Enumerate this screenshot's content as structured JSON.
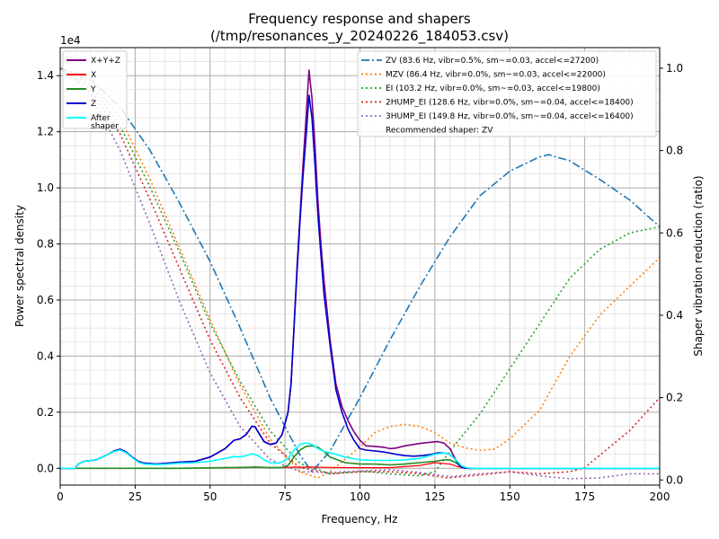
{
  "chart_data": {
    "type": "line",
    "title": "Frequency response and shapers",
    "subtitle": "(/tmp/resonances_y_20240226_184053.csv)",
    "xlabel": "Frequency, Hz",
    "ylabel": "Power spectral density",
    "y2label": "Shaper vibration reduction (ratio)",
    "y_offset_label": "1e4",
    "xlim": [
      0,
      200
    ],
    "ylim": [
      -0.06,
      1.5
    ],
    "y2lim": [
      -0.0125,
      1.05
    ],
    "x_ticks": [
      0,
      25,
      50,
      75,
      100,
      125,
      150,
      175,
      200
    ],
    "y_ticks": [
      0.0,
      0.2,
      0.4,
      0.6,
      0.8,
      1.0,
      1.2,
      1.4
    ],
    "y2_ticks": [
      0.0,
      0.2,
      0.4,
      0.6,
      0.8,
      1.0
    ],
    "grid": "major and minor",
    "legend_left": {
      "placement": "top-left",
      "entries": [
        {
          "label": "X+Y+Z",
          "color": "#800080"
        },
        {
          "label": "X",
          "color": "#ff0000"
        },
        {
          "label": "Y",
          "color": "#228b22"
        },
        {
          "label": "Z",
          "color": "#0000cd"
        },
        {
          "label": "After\nshaper",
          "color": "#00ffff"
        }
      ]
    },
    "legend_right": {
      "placement": "top-right",
      "entries": [
        {
          "label": "ZV (83.6 Hz, vibr=0.5%, sm~=0.03, accel<=27200)",
          "color": "#1f77b4",
          "style": "dashdot"
        },
        {
          "label": "MZV (86.4 Hz, vibr=0.0%, sm~=0.03, accel<=22000)",
          "color": "#ff7f0e",
          "style": "dotted"
        },
        {
          "label": "EI (103.2 Hz, vibr=0.0%, sm~=0.03, accel<=19800)",
          "color": "#2ca02c",
          "style": "dotted"
        },
        {
          "label": "2HUMP_EI (128.6 Hz, vibr=0.0%, sm~=0.04, accel<=18400)",
          "color": "#d62728",
          "style": "dotted"
        },
        {
          "label": "3HUMP_EI (149.8 Hz, vibr=0.0%, sm~=0.04, accel<=16400)",
          "color": "#9467bd",
          "style": "dotted"
        }
      ],
      "note": "Recommended shaper: ZV"
    },
    "psd_series": [
      {
        "name": "X+Y+Z",
        "color": "#800080",
        "width": 1.6,
        "x": [
          0,
          5,
          6,
          8,
          12,
          16,
          18,
          20,
          22,
          24,
          26,
          28,
          32,
          36,
          40,
          45,
          50,
          55,
          58,
          60,
          62,
          64,
          65,
          66,
          68,
          70,
          72,
          74,
          76,
          77,
          78,
          79,
          80,
          81,
          82,
          83,
          84,
          85,
          86,
          87,
          88,
          90,
          92,
          94,
          96,
          98,
          100,
          102,
          105,
          108,
          110,
          112,
          115,
          118,
          121,
          124,
          126,
          128,
          130,
          132,
          133,
          134,
          136,
          140,
          150,
          160,
          170,
          180,
          190,
          200
        ],
        "y": [
          0,
          0,
          0.015,
          0.025,
          0.03,
          0.05,
          0.062,
          0.068,
          0.058,
          0.04,
          0.025,
          0.018,
          0.015,
          0.018,
          0.022,
          0.025,
          0.04,
          0.07,
          0.1,
          0.105,
          0.12,
          0.15,
          0.148,
          0.13,
          0.095,
          0.085,
          0.09,
          0.12,
          0.2,
          0.3,
          0.5,
          0.72,
          0.9,
          1.08,
          1.25,
          1.42,
          1.32,
          1.15,
          0.95,
          0.8,
          0.67,
          0.46,
          0.3,
          0.22,
          0.17,
          0.13,
          0.1,
          0.08,
          0.078,
          0.075,
          0.07,
          0.072,
          0.08,
          0.085,
          0.09,
          0.093,
          0.095,
          0.09,
          0.07,
          0.03,
          0.012,
          0.003,
          0,
          0,
          0,
          0,
          0,
          0,
          0,
          0
        ]
      },
      {
        "name": "X",
        "color": "#ff0000",
        "width": 1.2,
        "x": [
          0,
          20,
          40,
          60,
          65,
          70,
          75,
          80,
          85,
          90,
          100,
          110,
          120,
          125,
          130,
          133,
          135,
          140,
          200
        ],
        "y": [
          0,
          0,
          0,
          0.002,
          0.005,
          0.002,
          0.003,
          0.004,
          0.004,
          0.003,
          0.002,
          0.002,
          0.01,
          0.02,
          0.015,
          0.005,
          0,
          0,
          0
        ]
      },
      {
        "name": "Y",
        "color": "#228b22",
        "width": 1.6,
        "x": [
          0,
          20,
          40,
          60,
          66,
          70,
          74,
          76,
          78,
          80,
          82,
          84,
          86,
          88,
          90,
          95,
          100,
          105,
          110,
          115,
          120,
          125,
          128,
          130,
          132,
          134,
          136,
          140,
          200
        ],
        "y": [
          0,
          0,
          0,
          0.003,
          0.004,
          0.002,
          0.003,
          0.01,
          0.04,
          0.065,
          0.078,
          0.08,
          0.075,
          0.06,
          0.04,
          0.02,
          0.015,
          0.015,
          0.012,
          0.015,
          0.02,
          0.025,
          0.03,
          0.03,
          0.02,
          0.005,
          0,
          0,
          0
        ]
      },
      {
        "name": "Z",
        "color": "#0000cd",
        "width": 1.6,
        "x": [
          0,
          5,
          6,
          8,
          12,
          16,
          18,
          20,
          22,
          24,
          26,
          28,
          32,
          36,
          40,
          45,
          50,
          55,
          58,
          60,
          62,
          64,
          65,
          66,
          68,
          70,
          72,
          74,
          76,
          77,
          78,
          79,
          80,
          81,
          82,
          83,
          84,
          85,
          86,
          87,
          88,
          90,
          92,
          94,
          96,
          98,
          100,
          102,
          105,
          108,
          110,
          112,
          115,
          118,
          121,
          124,
          126,
          128,
          130,
          132,
          133,
          134,
          136,
          140,
          150,
          160,
          170,
          180,
          190,
          200
        ],
        "y": [
          0,
          0,
          0.015,
          0.025,
          0.03,
          0.05,
          0.062,
          0.068,
          0.058,
          0.04,
          0.025,
          0.018,
          0.015,
          0.018,
          0.022,
          0.025,
          0.04,
          0.07,
          0.1,
          0.105,
          0.12,
          0.15,
          0.148,
          0.13,
          0.095,
          0.085,
          0.09,
          0.12,
          0.2,
          0.3,
          0.5,
          0.7,
          0.88,
          1.04,
          1.18,
          1.33,
          1.25,
          1.08,
          0.9,
          0.76,
          0.62,
          0.44,
          0.28,
          0.2,
          0.14,
          0.1,
          0.07,
          0.065,
          0.062,
          0.058,
          0.054,
          0.05,
          0.045,
          0.043,
          0.045,
          0.05,
          0.055,
          0.055,
          0.05,
          0.03,
          0.012,
          0.003,
          0,
          0,
          0,
          0,
          0,
          0,
          0,
          0
        ]
      },
      {
        "name": "After shaper",
        "color": "#00ffff",
        "width": 1.6,
        "x": [
          0,
          5,
          6,
          8,
          12,
          16,
          18,
          20,
          22,
          24,
          26,
          28,
          32,
          36,
          40,
          45,
          50,
          55,
          58,
          60,
          62,
          64,
          66,
          68,
          70,
          72,
          74,
          76,
          78,
          80,
          82,
          84,
          86,
          88,
          90,
          92,
          95,
          100,
          105,
          110,
          115,
          120,
          125,
          128,
          130,
          132,
          134,
          136,
          140,
          200
        ],
        "y": [
          0,
          0,
          0.015,
          0.025,
          0.03,
          0.05,
          0.06,
          0.065,
          0.055,
          0.038,
          0.022,
          0.015,
          0.013,
          0.015,
          0.018,
          0.02,
          0.025,
          0.035,
          0.042,
          0.04,
          0.045,
          0.052,
          0.045,
          0.03,
          0.02,
          0.018,
          0.022,
          0.035,
          0.065,
          0.085,
          0.09,
          0.085,
          0.07,
          0.06,
          0.055,
          0.05,
          0.04,
          0.03,
          0.028,
          0.028,
          0.03,
          0.035,
          0.05,
          0.055,
          0.05,
          0.03,
          0.008,
          0.001,
          0,
          0
        ]
      }
    ],
    "shaper_series": [
      {
        "name": "ZV",
        "color": "#1f77b4",
        "style": "dashdot",
        "x": [
          0,
          10,
          20,
          30,
          40,
          50,
          60,
          70,
          80,
          84,
          90,
          100,
          110,
          120,
          130,
          140,
          150,
          160,
          163,
          170,
          180,
          190,
          200
        ],
        "y": [
          1.0,
          0.975,
          0.905,
          0.8,
          0.67,
          0.53,
          0.37,
          0.2,
          0.06,
          0.02,
          0.07,
          0.2,
          0.34,
          0.47,
          0.59,
          0.69,
          0.75,
          0.785,
          0.79,
          0.775,
          0.73,
          0.68,
          0.615
        ]
      },
      {
        "name": "MZV",
        "color": "#ff7f0e",
        "style": "dotted",
        "x": [
          0,
          10,
          20,
          30,
          40,
          50,
          60,
          70,
          80,
          86,
          90,
          100,
          105,
          110,
          115,
          120,
          125,
          130,
          135,
          140,
          145,
          150,
          160,
          170,
          180,
          190,
          200
        ],
        "y": [
          1.0,
          0.97,
          0.88,
          0.73,
          0.56,
          0.39,
          0.23,
          0.1,
          0.02,
          0.005,
          0.02,
          0.08,
          0.115,
          0.13,
          0.135,
          0.13,
          0.115,
          0.09,
          0.078,
          0.072,
          0.075,
          0.1,
          0.17,
          0.3,
          0.4,
          0.47,
          0.54
        ]
      },
      {
        "name": "EI",
        "color": "#2ca02c",
        "style": "dotted",
        "x": [
          0,
          10,
          20,
          30,
          40,
          50,
          60,
          70,
          80,
          90,
          100,
          103,
          110,
          120,
          125,
          130,
          140,
          150,
          160,
          170,
          180,
          190,
          200
        ],
        "y": [
          1.0,
          0.96,
          0.86,
          0.71,
          0.55,
          0.38,
          0.24,
          0.12,
          0.04,
          0.015,
          0.02,
          0.02,
          0.015,
          0.01,
          0.02,
          0.07,
          0.16,
          0.27,
          0.38,
          0.49,
          0.56,
          0.6,
          0.615
        ]
      },
      {
        "name": "2HUMP_EI",
        "color": "#d62728",
        "style": "dotted",
        "x": [
          0,
          10,
          20,
          30,
          40,
          50,
          60,
          70,
          80,
          90,
          100,
          110,
          120,
          129,
          140,
          150,
          160,
          170,
          175,
          180,
          190,
          200
        ],
        "y": [
          1.0,
          0.95,
          0.84,
          0.68,
          0.51,
          0.34,
          0.2,
          0.09,
          0.03,
          0.015,
          0.02,
          0.02,
          0.015,
          0.005,
          0.012,
          0.02,
          0.015,
          0.02,
          0.03,
          0.06,
          0.12,
          0.2
        ]
      },
      {
        "name": "3HUMP_EI",
        "color": "#9467bd",
        "style": "dotted",
        "x": [
          0,
          10,
          20,
          30,
          40,
          50,
          60,
          70,
          80,
          90,
          100,
          110,
          120,
          130,
          140,
          150,
          160,
          170,
          180,
          190,
          200
        ],
        "y": [
          1.0,
          0.94,
          0.8,
          0.62,
          0.43,
          0.26,
          0.13,
          0.05,
          0.02,
          0.018,
          0.022,
          0.025,
          0.018,
          0.008,
          0.015,
          0.02,
          0.01,
          0.003,
          0.005,
          0.015,
          0.015
        ]
      }
    ]
  }
}
